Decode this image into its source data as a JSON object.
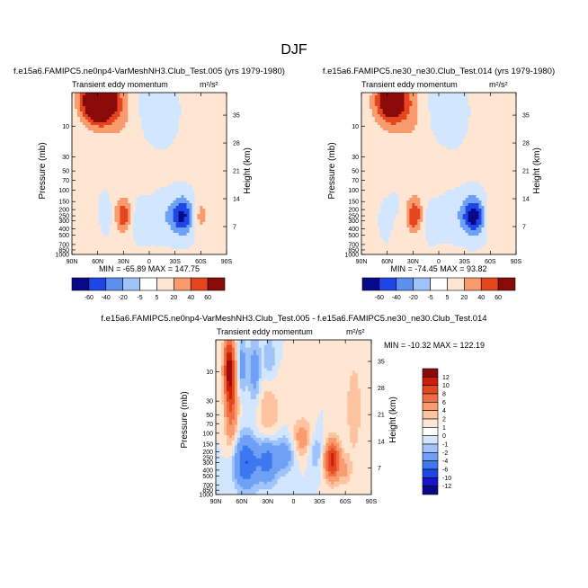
{
  "page_title": "DJF",
  "colors": {
    "scale_top": [
      "#08088a",
      "#1414c8",
      "#1e46e6",
      "#3c78f0",
      "#6ea0f5",
      "#a0c3fa",
      "#d2e6ff",
      "#ffe6d2",
      "#ffc3a0",
      "#fa9b6e",
      "#f06e46",
      "#e6461e",
      "#c81e0a",
      "#8a0a0a"
    ],
    "scale_diff": [
      "#08088a",
      "#1414c8",
      "#1e46e6",
      "#3c78f0",
      "#6ea0f5",
      "#a0c3fa",
      "#d2e6ff",
      "#ffe6d2",
      "#ffc3a0",
      "#fa9b6e",
      "#f06e46",
      "#e6461e",
      "#c81e0a",
      "#8a0a0a"
    ],
    "frame": "#000000"
  },
  "chart_data": [
    {
      "type": "heatmap",
      "title": "f.e15a6.FAMIPC5.ne0np4-VarMeshNH3.Club_Test.005 (yrs 1979-1980)",
      "subtitle_left": "Transient eddy momentum",
      "units": "m²/s²",
      "ylabel": "Pressure (mb)",
      "ylabel_right": "Height (km)",
      "x_ticks": [
        "90N",
        "60N",
        "30N",
        "0",
        "30S",
        "60S",
        "90S"
      ],
      "y_ticks": [
        "10",
        "30",
        "50",
        "70",
        "100",
        "150",
        "200",
        "250",
        "300",
        "400",
        "500",
        "700",
        "850",
        "1000"
      ],
      "y_ticks_right": [
        "35",
        "28",
        "21",
        "14",
        "7"
      ],
      "min": -65.89,
      "max": 147.75,
      "stats_text": "MIN = -65.89   MAX = 147.75",
      "levels": [
        "-60",
        "-40",
        "-20",
        "-5",
        "5",
        "20",
        "40",
        "60"
      ]
    },
    {
      "type": "heatmap",
      "title": "f.e15a6.FAMIPC5.ne30_ne30.Club_Test.014 (yrs 1979-1980)",
      "subtitle_left": "Transient eddy momentum",
      "units": "m²/s²",
      "ylabel": "Pressure (mb)",
      "ylabel_right": "Height (km)",
      "x_ticks": [
        "90N",
        "60N",
        "30N",
        "0",
        "30S",
        "60S",
        "90S"
      ],
      "y_ticks": [
        "10",
        "30",
        "50",
        "70",
        "100",
        "150",
        "200",
        "250",
        "300",
        "400",
        "500",
        "700",
        "850",
        "1000"
      ],
      "y_ticks_right": [
        "35",
        "28",
        "21",
        "14",
        "7"
      ],
      "min": -74.45,
      "max": 93.82,
      "stats_text": "MIN = -74.45   MAX =  93.82",
      "levels": [
        "-60",
        "-40",
        "-20",
        "-5",
        "5",
        "20",
        "40",
        "60"
      ]
    },
    {
      "type": "heatmap",
      "title": "f.e15a6.FAMIPC5.ne0np4-VarMeshNH3.Club_Test.005 - f.e15a6.FAMIPC5.ne30_ne30.Club_Test.014",
      "subtitle_left": "Transient eddy momentum",
      "units": "m²/s²",
      "ylabel": "Pressure (mb)",
      "ylabel_right": "Height (km)",
      "x_ticks": [
        "90N",
        "60N",
        "30N",
        "0",
        "30S",
        "60S",
        "90S"
      ],
      "y_ticks": [
        "10",
        "30",
        "50",
        "70",
        "100",
        "150",
        "200",
        "250",
        "300",
        "400",
        "500",
        "700",
        "850",
        "1000"
      ],
      "y_ticks_right": [
        "35",
        "28",
        "21",
        "14",
        "7"
      ],
      "min": -10.32,
      "max": 122.19,
      "stats_text": "MIN = -10.32   MAX = 122.19",
      "levels": [
        "12",
        "10",
        "8",
        "6",
        "4",
        "2",
        "1",
        "0",
        "-1",
        "-2",
        "-4",
        "-6",
        "-10",
        "-12"
      ]
    }
  ]
}
